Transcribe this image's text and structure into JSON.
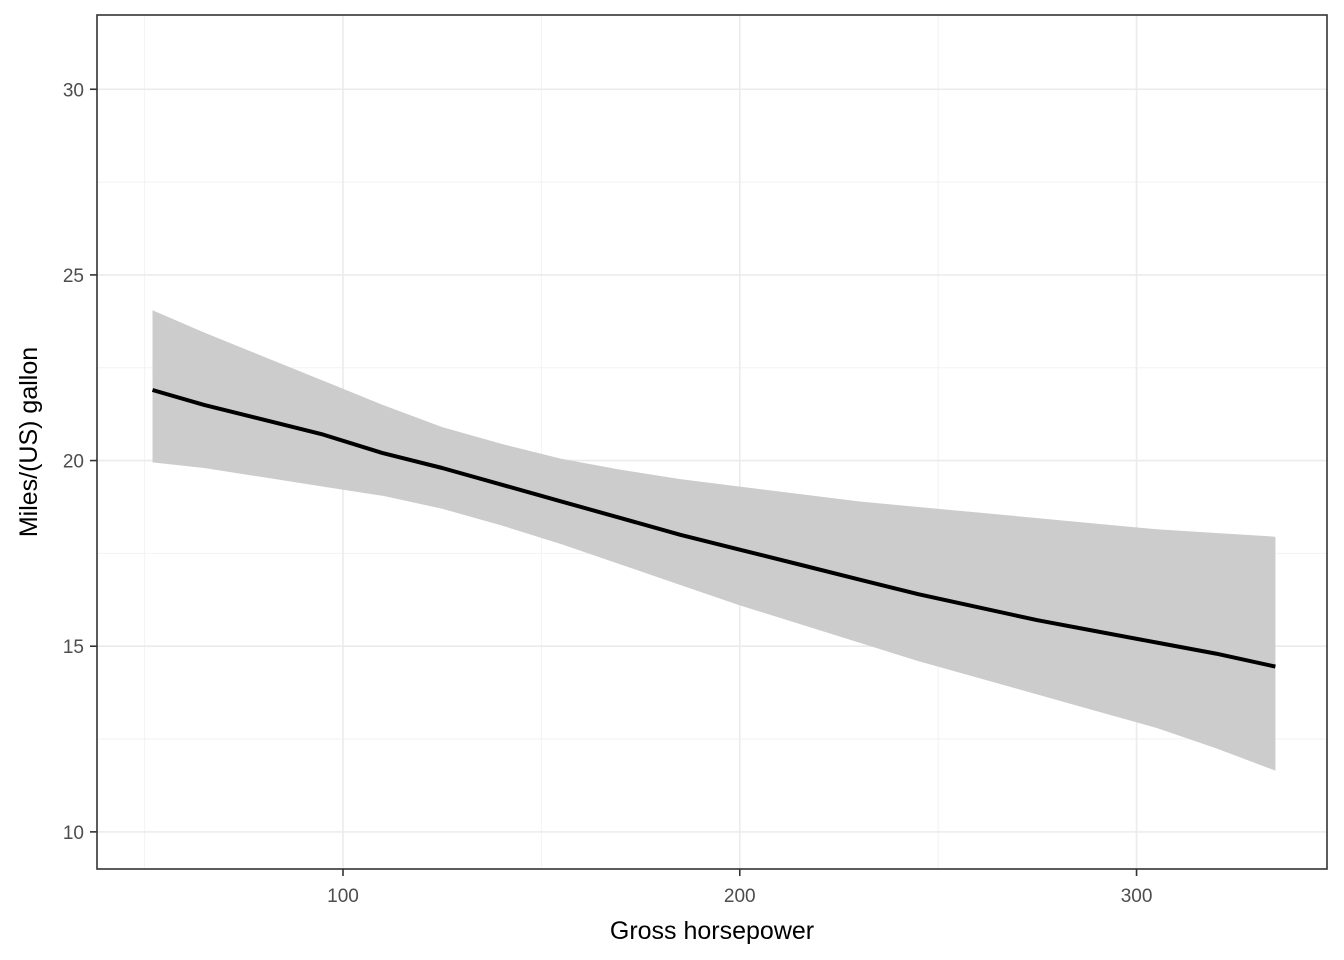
{
  "chart_data": {
    "type": "line",
    "title": "",
    "xlabel": "Gross horsepower",
    "ylabel": "Miles/(US) gallon",
    "xlim": [
      38,
      348
    ],
    "ylim": [
      9,
      32
    ],
    "x_ticks": [
      100,
      200,
      300
    ],
    "x_minor_ticks": [
      50,
      150,
      250
    ],
    "y_ticks": [
      10,
      15,
      20,
      25,
      30
    ],
    "y_minor_ticks": [
      12.5,
      17.5,
      22.5,
      27.5
    ],
    "x_tick_labels": [
      "100",
      "200",
      "300"
    ],
    "y_tick_labels": [
      "10",
      "15",
      "20",
      "25",
      "30"
    ],
    "grid": true,
    "legend": "none",
    "series": [
      {
        "x": [
          52,
          65,
          80,
          95,
          110,
          125,
          140,
          155,
          170,
          185,
          200,
          215,
          230,
          245,
          260,
          275,
          290,
          305,
          320,
          335
        ],
        "y": [
          21.9,
          21.5,
          21.1,
          20.7,
          20.2,
          19.8,
          19.35,
          18.9,
          18.45,
          18.0,
          17.6,
          17.2,
          16.8,
          16.4,
          16.05,
          15.7,
          15.4,
          15.1,
          14.8,
          14.45
        ],
        "ci_lower": [
          19.95,
          19.8,
          19.55,
          19.3,
          19.05,
          18.7,
          18.25,
          17.75,
          17.2,
          16.65,
          16.1,
          15.6,
          15.1,
          14.6,
          14.15,
          13.7,
          13.25,
          12.8,
          12.25,
          11.65
        ],
        "ci_upper": [
          24.05,
          23.45,
          22.8,
          22.15,
          21.5,
          20.9,
          20.45,
          20.05,
          19.75,
          19.5,
          19.3,
          19.1,
          18.9,
          18.75,
          18.6,
          18.45,
          18.3,
          18.15,
          18.05,
          17.95
        ]
      }
    ],
    "colors": {
      "line": "#000000",
      "ribbon": "#cccccc",
      "grid_major": "#ebebeb",
      "grid_minor": "#f2f2f2",
      "panel_border": "#333333",
      "background": "#ffffff"
    }
  }
}
